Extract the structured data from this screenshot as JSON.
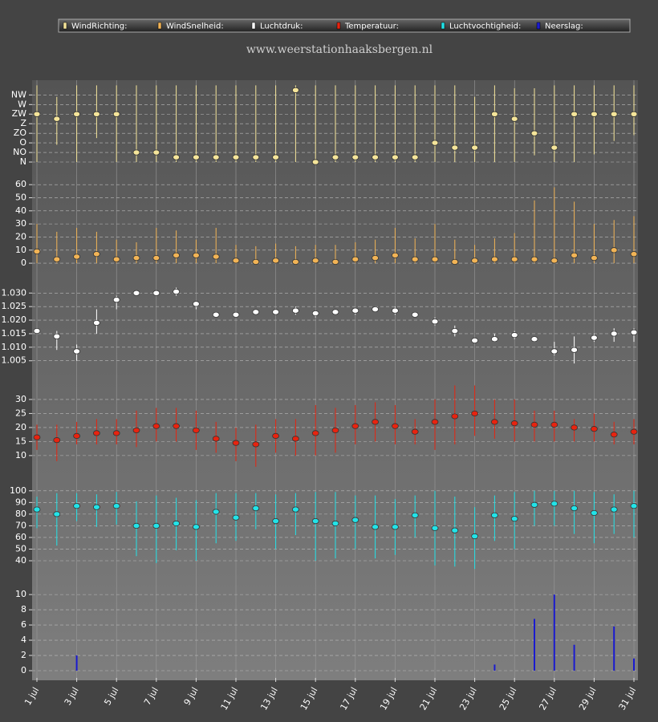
{
  "chart_data": [
    {
      "type": "range",
      "title": "www.weerstationhaaksbergen.nl",
      "ylim": [
        -0.25,
        8.2
      ],
      "yticks": [
        {
          "value": 0,
          "label": "N"
        },
        {
          "value": 1,
          "label": "NO"
        },
        {
          "value": 2,
          "label": "O"
        },
        {
          "value": 3,
          "label": "ZO"
        },
        {
          "value": 4,
          "label": "Z"
        },
        {
          "value": 5,
          "label": "ZW"
        },
        {
          "value": 6,
          "label": "W"
        },
        {
          "value": 7,
          "label": "NW"
        }
      ],
      "grid": true,
      "series": [
        {
          "name": "WindRichting:",
          "color": "#f5e59a",
          "values": [
            5,
            4.5,
            5,
            5,
            5,
            1,
            1,
            0.5,
            0.5,
            0.5,
            0.5,
            0.5,
            0.5,
            7.5,
            0,
            0.5,
            0.5,
            0.5,
            0.5,
            0.5,
            2,
            1.5,
            1.5,
            5,
            4.5,
            3,
            1.5,
            5,
            5,
            5,
            5
          ],
          "low": [
            0,
            1.8,
            0,
            2.5,
            0,
            0,
            0,
            0,
            0,
            0,
            0,
            0,
            0,
            0,
            0,
            0,
            0,
            0,
            0,
            0,
            0,
            0,
            0,
            0,
            0,
            0.7,
            0,
            0,
            0.8,
            2.2,
            2.8
          ],
          "high": [
            8,
            6.8,
            8,
            8,
            8,
            8,
            8,
            8,
            8,
            8,
            8,
            8,
            8,
            8,
            8,
            8,
            8,
            8,
            8,
            8,
            8,
            8,
            6.8,
            8,
            7.7,
            7.7,
            8,
            8,
            8,
            8,
            8
          ]
        }
      ]
    },
    {
      "type": "range",
      "ylim": [
        -3,
        65
      ],
      "yticks": [
        0,
        10,
        20,
        30,
        40,
        50,
        60
      ],
      "grid": true,
      "series": [
        {
          "name": "WindSnelheid:",
          "color": "#f2b456",
          "values": [
            9,
            3,
            5,
            7,
            3,
            4,
            4,
            6,
            6,
            5,
            2,
            1,
            2,
            1,
            2,
            1,
            3,
            4,
            6,
            3,
            3,
            1,
            2,
            3,
            3,
            3,
            2,
            6,
            4,
            10,
            7
          ],
          "low": [
            0,
            0,
            0,
            0,
            0,
            0,
            0,
            0,
            0,
            0,
            0,
            0,
            0,
            0,
            0,
            0,
            0,
            0,
            0,
            0,
            0,
            0,
            0,
            0,
            0,
            0,
            0,
            0,
            0,
            0,
            0
          ],
          "high": [
            30,
            24,
            27,
            24,
            18,
            16,
            27,
            25,
            18,
            27,
            14,
            13,
            15,
            13,
            14,
            14,
            16,
            18,
            27,
            19,
            30,
            18,
            14,
            19,
            23,
            48,
            58,
            47,
            30,
            33,
            36
          ]
        }
      ]
    },
    {
      "type": "range",
      "ylim": [
        0.999,
        1.036
      ],
      "yticks": [
        1.005,
        {
          "value": 1.01,
          "label": "1.010"
        },
        1.015,
        {
          "value": 1.02,
          "label": "1.020"
        },
        1.025,
        {
          "value": 1.03,
          "label": "1.030"
        }
      ],
      "grid": true,
      "series": [
        {
          "name": "Luchtdruk:",
          "color": "#ffffff",
          "values": [
            1.016,
            1.014,
            1.0085,
            1.019,
            1.0275,
            1.03,
            1.03,
            1.0305,
            1.026,
            1.022,
            1.022,
            1.023,
            1.023,
            1.0235,
            1.0225,
            1.023,
            1.0235,
            1.024,
            1.0235,
            1.022,
            1.0195,
            1.016,
            1.0125,
            1.013,
            1.0145,
            1.013,
            1.0085,
            1.009,
            1.0135,
            1.015,
            1.0155
          ],
          "low": [
            1.015,
            1.009,
            1.005,
            1.015,
            1.024,
            1.029,
            1.029,
            1.029,
            1.024,
            1.021,
            1.021,
            1.022,
            1.022,
            1.022,
            1.021,
            1.022,
            1.022,
            1.023,
            1.022,
            1.021,
            1.018,
            1.014,
            1.012,
            1.012,
            1.013,
            1.012,
            1.007,
            1.004,
            1.012,
            1.012,
            1.012
          ],
          "high": [
            1.017,
            1.016,
            1.011,
            1.024,
            1.029,
            1.031,
            1.031,
            1.032,
            1.027,
            1.023,
            1.023,
            1.024,
            1.024,
            1.025,
            1.023,
            1.024,
            1.024,
            1.025,
            1.025,
            1.023,
            1.021,
            1.018,
            1.013,
            1.015,
            1.016,
            1.014,
            1.012,
            1.014,
            1.015,
            1.017,
            1.017
          ]
        }
      ]
    },
    {
      "type": "range",
      "ylim": [
        5.1,
        35.7
      ],
      "yticks": [
        10,
        15,
        20,
        25,
        30
      ],
      "grid": true,
      "series": [
        {
          "name": "Temperatuur:",
          "color": "#e8230f",
          "values": [
            16.5,
            15.5,
            17,
            18,
            18,
            19,
            20.5,
            20.5,
            19,
            16,
            14.5,
            14,
            17,
            16,
            18,
            19,
            20.5,
            22,
            20.5,
            18.5,
            22,
            24,
            25,
            22,
            21.5,
            21,
            21,
            20,
            19.5,
            17.5,
            18.5
          ],
          "low": [
            12,
            8,
            14,
            14,
            14,
            13,
            15,
            15,
            12,
            11,
            8,
            6,
            11,
            10,
            10,
            11,
            14,
            15,
            14,
            14,
            12,
            14,
            17,
            16,
            15,
            15,
            15,
            15,
            15,
            14,
            14
          ],
          "high": [
            21,
            21,
            22,
            23,
            23,
            26,
            27,
            27,
            26,
            22,
            20,
            21,
            23,
            23,
            28,
            27,
            28,
            29,
            28,
            23,
            30,
            35,
            35,
            30,
            30,
            26,
            26,
            23,
            25,
            22,
            23
          ]
        }
      ]
    },
    {
      "type": "range",
      "ylim": [
        29,
        115
      ],
      "yticks": [
        40,
        50,
        60,
        70,
        80,
        90,
        100
      ],
      "grid": true,
      "series": [
        {
          "name": "Luchtvochtigheid:",
          "color": "#22e3e8",
          "values": [
            84,
            80,
            87,
            86,
            87,
            70,
            70,
            72,
            69,
            82,
            77,
            85,
            74,
            84,
            74,
            72,
            75,
            69,
            69,
            79,
            68,
            66,
            61,
            79,
            76,
            88,
            89,
            85,
            81,
            84,
            87
          ],
          "low": [
            68,
            53,
            74,
            69,
            71,
            44,
            38,
            49,
            40,
            55,
            57,
            67,
            50,
            62,
            40,
            42,
            50,
            42,
            45,
            60,
            36,
            35,
            33,
            57,
            50,
            70,
            70,
            63,
            55,
            63,
            60
          ],
          "high": [
            95,
            98,
            98,
            97,
            99,
            91,
            96,
            94,
            92,
            98,
            98,
            98,
            97,
            98,
            99,
            99,
            96,
            96,
            93,
            96,
            100,
            95,
            86,
            96,
            99,
            100,
            100,
            100,
            99,
            97,
            100
          ]
        }
      ]
    },
    {
      "type": "bar",
      "ylim": [
        -0.95,
        11.7
      ],
      "yticks": [
        0,
        2,
        4,
        6,
        8,
        10
      ],
      "grid": true,
      "categories": [
        "1 jul",
        null,
        "3 jul",
        null,
        "5 jul",
        null,
        "7 jul",
        null,
        "9 jul",
        null,
        "11 jul",
        null,
        "13 jul",
        null,
        "15 jul",
        null,
        "17 jul",
        null,
        "19 jul",
        null,
        "21 jul",
        null,
        "23 jul",
        null,
        "25 jul",
        null,
        "27 jul",
        null,
        "29 jul",
        null,
        "31 jul"
      ],
      "series": [
        {
          "name": "Neerslag:",
          "color": "#1a1ad0",
          "values": [
            0,
            0,
            2,
            0,
            0,
            0,
            0,
            0,
            0,
            0,
            0,
            0,
            0,
            0,
            0,
            0,
            0,
            0,
            0,
            0,
            0,
            0,
            0,
            0.8,
            0,
            6.8,
            10,
            3.4,
            0,
            5.8,
            1.6
          ]
        }
      ]
    }
  ]
}
